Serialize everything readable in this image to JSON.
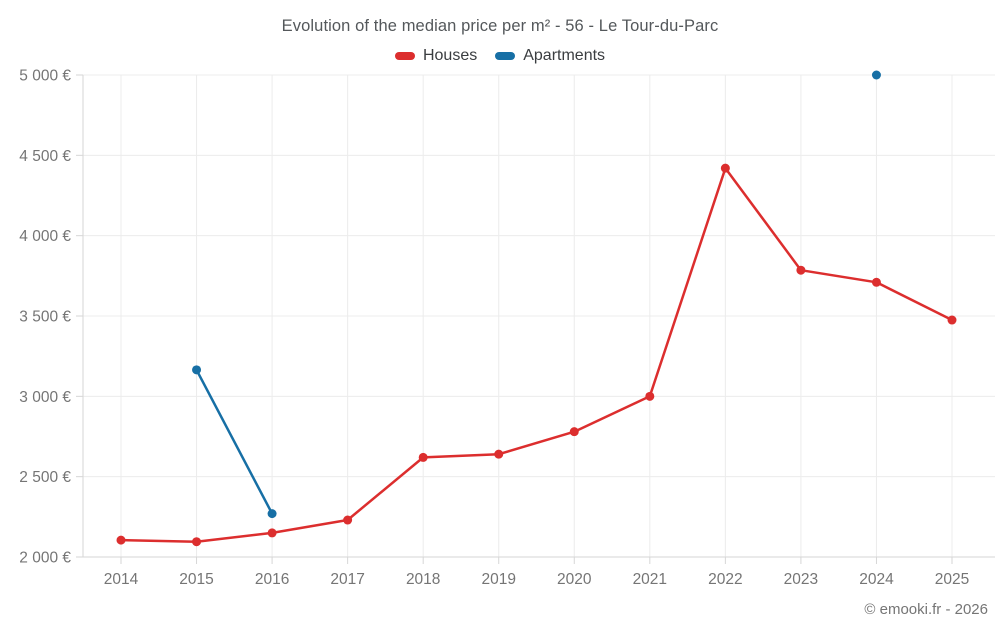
{
  "footer": {
    "credit": "© emooki.fr - 2026"
  },
  "colors": {
    "grid": "#ececec",
    "axis": "#d6d6d6",
    "tick_label": "#757575",
    "title_text": "#54585b",
    "legend_text": "#3a3d40",
    "houses": "#dc2e2e",
    "apartments": "#176fa5"
  },
  "chart_data": {
    "type": "line",
    "title": "Evolution of the median price per m² - 56 - Le Tour-du-Parc",
    "xlabel": "",
    "ylabel": "",
    "categories": [
      "2014",
      "2015",
      "2016",
      "2017",
      "2018",
      "2019",
      "2020",
      "2021",
      "2022",
      "2023",
      "2024",
      "2025"
    ],
    "series": [
      {
        "name": "Houses",
        "color": "#dc2e2e",
        "values": [
          2105,
          2095,
          2150,
          2230,
          2620,
          2640,
          2780,
          3000,
          4420,
          3785,
          3710,
          3475
        ]
      },
      {
        "name": "Apartments",
        "color": "#176fa5",
        "values": [
          null,
          3165,
          2270,
          null,
          null,
          null,
          null,
          null,
          null,
          null,
          5000,
          null
        ]
      }
    ],
    "ylim": [
      2000,
      5000
    ],
    "y_ticks": [
      {
        "value": 2000,
        "label": "2 000 €"
      },
      {
        "value": 2500,
        "label": "2 500 €"
      },
      {
        "value": 3000,
        "label": "3 000 €"
      },
      {
        "value": 3500,
        "label": "3 500 €"
      },
      {
        "value": 4000,
        "label": "4 000 €"
      },
      {
        "value": 4500,
        "label": "4 500 €"
      },
      {
        "value": 5000,
        "label": "5 000 €"
      }
    ],
    "grid": true,
    "legend_position": "top"
  }
}
